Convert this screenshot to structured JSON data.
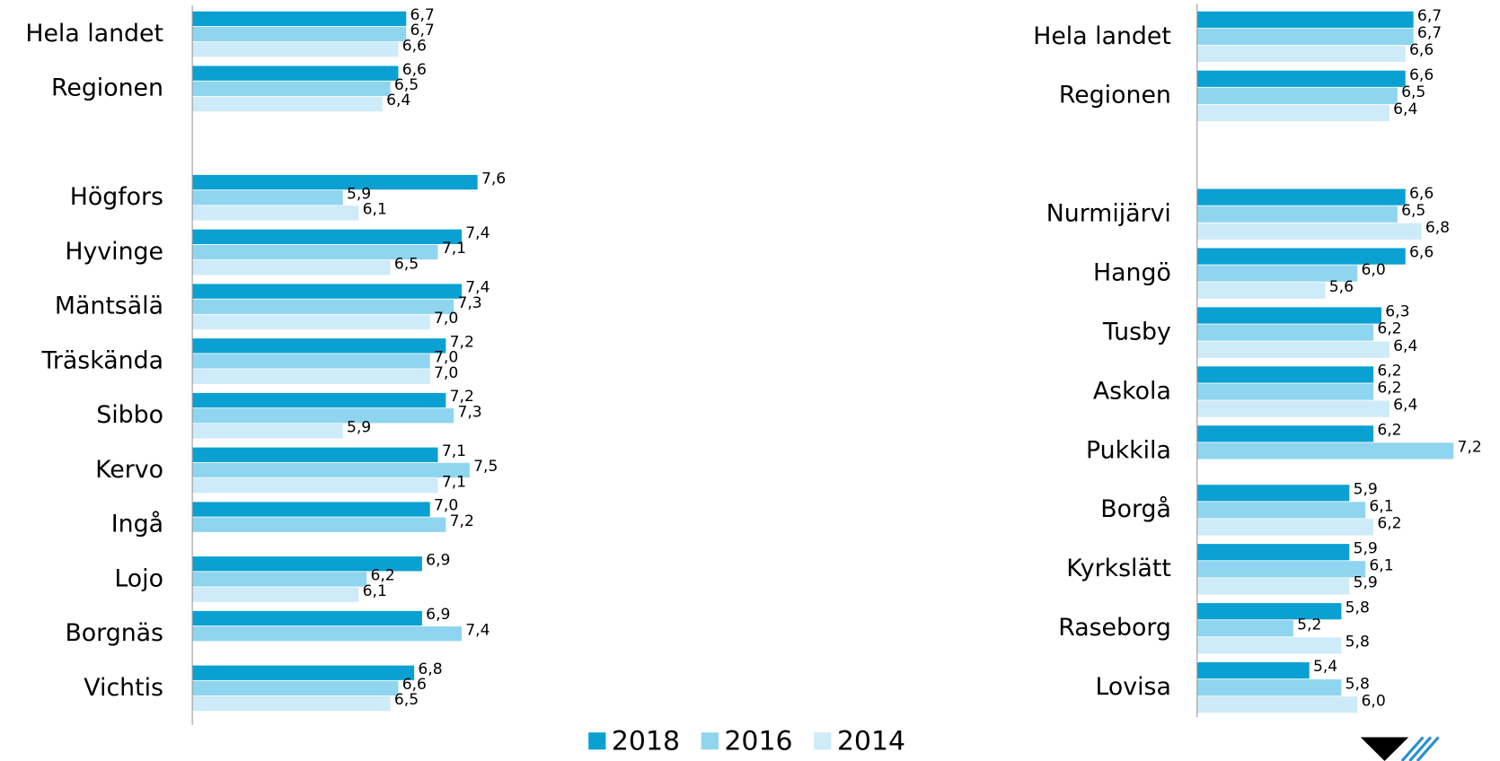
{
  "chart_data": [
    {
      "type": "bar",
      "orientation": "horizontal",
      "categories": [
        "Hela landet",
        "Regionen",
        null,
        "Högfors",
        "Hyvinge",
        "Mäntsälä",
        "Träskända",
        "Sibbo",
        "Kervo",
        "Ingå",
        "Lojo",
        "Borgnäs",
        "Vichtis"
      ],
      "xlim": [
        4.0,
        9.0
      ],
      "series": [
        {
          "name": "2018",
          "color": "#0aa0d2",
          "values": [
            6.7,
            6.6,
            null,
            7.6,
            7.4,
            7.4,
            7.2,
            7.2,
            7.1,
            7.0,
            6.9,
            6.9,
            6.8
          ],
          "value_labels": [
            "6,7",
            "6,6",
            null,
            "7,6",
            "7,4",
            "7,4",
            "7,2",
            "7,2",
            "7,1",
            "7,0",
            "6,9",
            "6,9",
            "6,8"
          ]
        },
        {
          "name": "2016",
          "color": "#8fd5ef",
          "values": [
            6.7,
            6.5,
            null,
            5.9,
            7.1,
            7.3,
            7.0,
            7.3,
            7.5,
            7.2,
            6.2,
            7.4,
            6.6
          ],
          "value_labels": [
            "6,7",
            "6,5",
            null,
            "5,9",
            "7,1",
            "7,3",
            "7,0",
            "7,3",
            "7,5",
            "7,2",
            "6,2",
            "7,4",
            "6,6"
          ]
        },
        {
          "name": "2014",
          "color": "#cdebf8",
          "values": [
            6.6,
            6.4,
            null,
            6.1,
            6.5,
            7.0,
            7.0,
            5.9,
            7.1,
            null,
            6.1,
            null,
            6.5
          ],
          "value_labels": [
            "6,6",
            "6,4",
            null,
            "6,1",
            "6,5",
            "7,0",
            "7,0",
            "5,9",
            "7,1",
            null,
            "6,1",
            null,
            "6,5"
          ]
        }
      ]
    },
    {
      "type": "bar",
      "orientation": "horizontal",
      "categories": [
        "Hela landet",
        "Regionen",
        null,
        "Nurmijärvi",
        "Hangö",
        "Tusby",
        "Askola",
        "Pukkila",
        "Borgå",
        "Kyrkslätt",
        "Raseborg",
        "Lovisa"
      ],
      "xlim": [
        4.0,
        7.6
      ],
      "series": [
        {
          "name": "2018",
          "color": "#0aa0d2",
          "values": [
            6.7,
            6.6,
            null,
            6.6,
            6.6,
            6.3,
            6.2,
            6.2,
            5.9,
            5.9,
            5.8,
            5.4
          ],
          "value_labels": [
            "6,7",
            "6,6",
            null,
            "6,6",
            "6,6",
            "6,3",
            "6,2",
            "6,2",
            "5,9",
            "5,9",
            "5,8",
            "5,4"
          ]
        },
        {
          "name": "2016",
          "color": "#8fd5ef",
          "values": [
            6.7,
            6.5,
            null,
            6.5,
            6.0,
            6.2,
            6.2,
            7.2,
            6.1,
            6.1,
            5.2,
            5.8
          ],
          "value_labels": [
            "6,7",
            "6,5",
            null,
            "6,5",
            "6,0",
            "6,2",
            "6,2",
            "7,2",
            "6,1",
            "6,1",
            "5,2",
            "5,8"
          ]
        },
        {
          "name": "2014",
          "color": "#cdebf8",
          "values": [
            6.6,
            6.4,
            null,
            6.8,
            5.6,
            6.4,
            6.4,
            null,
            6.2,
            5.9,
            5.8,
            6.0
          ],
          "value_labels": [
            "6,6",
            "6,4",
            null,
            "6,8",
            "5,6",
            "6,4",
            "6,4",
            null,
            "6,2",
            "5,9",
            "5,8",
            "6,0"
          ]
        }
      ]
    }
  ]
}
